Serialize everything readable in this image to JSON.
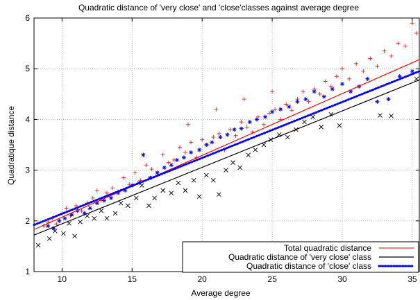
{
  "chart_data": {
    "type": "scatter",
    "title": "Quadratic distance of 'very close' and 'close'classes against average degree",
    "xlabel": "Average degree",
    "ylabel": "Quadratique distance",
    "xlim": [
      8,
      35.5
    ],
    "ylim": [
      1,
      6
    ],
    "x_ticks": [
      10,
      15,
      20,
      25,
      30,
      35
    ],
    "y_ticks": [
      1,
      2,
      3,
      4,
      5,
      6
    ],
    "grid": true,
    "legend_position": "bottom-right",
    "colors": {
      "total": "#ff0000",
      "very_close": "#000000",
      "close": "#0000ff"
    },
    "fit_lines": [
      {
        "name": "Total quadratic distance",
        "series": "total",
        "x": [
          8,
          35.5
        ],
        "y": [
          1.83,
          5.18
        ],
        "style": "solid"
      },
      {
        "name": "Quadratic distance of 'very close' class",
        "series": "very_close",
        "x": [
          8,
          35.5
        ],
        "y": [
          1.72,
          4.78
        ],
        "style": "solid"
      },
      {
        "name": "Quadratic distance of 'close' class",
        "series": "close",
        "x": [
          8,
          35.5
        ],
        "y": [
          1.92,
          4.95
        ],
        "style": "dotted"
      }
    ],
    "series": [
      {
        "name": "Total quadratic distance",
        "key": "total",
        "marker": "+",
        "points": [
          [
            8.7,
            1.9
          ],
          [
            9.0,
            1.98
          ],
          [
            9.3,
            2.05
          ],
          [
            9.6,
            1.94
          ],
          [
            10.0,
            2.15
          ],
          [
            10.3,
            2.25
          ],
          [
            10.6,
            2.1
          ],
          [
            11.0,
            2.3
          ],
          [
            11.4,
            2.2
          ],
          [
            11.8,
            2.35
          ],
          [
            12.2,
            2.45
          ],
          [
            12.5,
            2.6
          ],
          [
            12.8,
            2.4
          ],
          [
            13.2,
            2.55
          ],
          [
            13.6,
            2.65
          ],
          [
            14.0,
            2.58
          ],
          [
            14.4,
            2.85
          ],
          [
            14.8,
            2.72
          ],
          [
            15.2,
            2.95
          ],
          [
            15.6,
            2.8
          ],
          [
            16.0,
            3.1
          ],
          [
            16.4,
            3.02
          ],
          [
            16.8,
            2.9
          ],
          [
            17.2,
            3.3
          ],
          [
            17.6,
            3.15
          ],
          [
            18.0,
            3.2
          ],
          [
            18.4,
            3.45
          ],
          [
            18.8,
            3.35
          ],
          [
            19.2,
            3.55
          ],
          [
            19.6,
            3.25
          ],
          [
            20.0,
            3.6
          ],
          [
            20.4,
            3.5
          ],
          [
            20.8,
            3.65
          ],
          [
            21.2,
            3.72
          ],
          [
            21.6,
            3.4
          ],
          [
            22.0,
            3.8
          ],
          [
            22.4,
            3.68
          ],
          [
            22.8,
            3.95
          ],
          [
            23.2,
            3.85
          ],
          [
            23.6,
            3.75
          ],
          [
            24.0,
            4.05
          ],
          [
            24.4,
            3.9
          ],
          [
            24.8,
            4.12
          ],
          [
            25.2,
            4.2
          ],
          [
            25.6,
            4.0
          ],
          [
            26.0,
            4.3
          ],
          [
            26.4,
            4.18
          ],
          [
            26.8,
            4.4
          ],
          [
            27.2,
            4.55
          ],
          [
            27.6,
            4.35
          ],
          [
            28.0,
            4.6
          ],
          [
            28.4,
            4.5
          ],
          [
            28.8,
            4.75
          ],
          [
            29.2,
            4.65
          ],
          [
            29.6,
            4.85
          ],
          [
            30.0,
            5.0
          ],
          [
            30.5,
            4.8
          ],
          [
            31.0,
            5.1
          ],
          [
            31.5,
            4.95
          ],
          [
            32.0,
            5.2
          ],
          [
            32.5,
            5.05
          ],
          [
            33.0,
            5.35
          ],
          [
            33.5,
            5.25
          ],
          [
            34.0,
            5.5
          ],
          [
            34.5,
            5.45
          ],
          [
            35.0,
            5.9
          ],
          [
            35.3,
            5.7
          ],
          [
            21.0,
            4.2
          ],
          [
            23.0,
            4.4
          ],
          [
            25.0,
            4.55
          ],
          [
            19.0,
            3.9
          ]
        ]
      },
      {
        "name": "Quadratic distance of 'very close' class",
        "key": "very_close",
        "marker": "x",
        "points": [
          [
            8.3,
            1.52
          ],
          [
            9.1,
            1.65
          ],
          [
            9.5,
            1.8
          ],
          [
            10.1,
            1.75
          ],
          [
            10.5,
            1.95
          ],
          [
            10.9,
            1.7
          ],
          [
            11.3,
            1.98
          ],
          [
            11.8,
            2.1
          ],
          [
            12.3,
            2.05
          ],
          [
            12.8,
            2.2
          ],
          [
            13.2,
            2.05
          ],
          [
            13.8,
            2.15
          ],
          [
            14.2,
            2.35
          ],
          [
            14.7,
            2.3
          ],
          [
            15.3,
            2.45
          ],
          [
            15.7,
            2.7
          ],
          [
            16.2,
            2.3
          ],
          [
            16.6,
            2.45
          ],
          [
            17.2,
            2.6
          ],
          [
            17.8,
            2.55
          ],
          [
            18.3,
            2.75
          ],
          [
            18.8,
            2.6
          ],
          [
            19.4,
            2.8
          ],
          [
            19.8,
            2.48
          ],
          [
            20.3,
            2.9
          ],
          [
            20.8,
            2.8
          ],
          [
            21.2,
            2.52
          ],
          [
            21.7,
            3.0
          ],
          [
            22.2,
            3.15
          ],
          [
            22.7,
            3.05
          ],
          [
            23.3,
            3.3
          ],
          [
            23.8,
            3.4
          ],
          [
            24.4,
            3.5
          ],
          [
            24.9,
            3.6
          ],
          [
            25.5,
            3.7
          ],
          [
            26.1,
            3.65
          ],
          [
            26.7,
            3.8
          ],
          [
            27.3,
            3.95
          ],
          [
            27.9,
            4.05
          ],
          [
            28.5,
            3.85
          ],
          [
            29.2,
            4.1
          ],
          [
            29.8,
            3.88
          ],
          [
            32.7,
            4.08
          ],
          [
            33.5,
            4.07
          ],
          [
            35.3,
            4.8
          ]
        ]
      },
      {
        "name": "Quadratic distance of 'close' class",
        "key": "close",
        "marker": "*",
        "points": [
          [
            9.0,
            1.9
          ],
          [
            9.4,
            1.85
          ],
          [
            9.8,
            2.0
          ],
          [
            10.2,
            2.05
          ],
          [
            10.7,
            2.12
          ],
          [
            11.1,
            2.2
          ],
          [
            11.6,
            2.15
          ],
          [
            12.0,
            2.25
          ],
          [
            12.5,
            2.35
          ],
          [
            13.0,
            2.4
          ],
          [
            13.5,
            2.45
          ],
          [
            14.0,
            2.55
          ],
          [
            14.5,
            2.6
          ],
          [
            15.0,
            2.7
          ],
          [
            15.5,
            2.75
          ],
          [
            15.8,
            3.3
          ],
          [
            16.3,
            2.85
          ],
          [
            16.8,
            2.95
          ],
          [
            17.3,
            3.05
          ],
          [
            17.8,
            3.1
          ],
          [
            18.2,
            3.2
          ],
          [
            18.7,
            3.25
          ],
          [
            19.2,
            3.35
          ],
          [
            19.8,
            3.4
          ],
          [
            20.3,
            3.5
          ],
          [
            20.7,
            3.55
          ],
          [
            21.3,
            3.65
          ],
          [
            21.8,
            3.7
          ],
          [
            22.3,
            3.8
          ],
          [
            22.8,
            3.82
          ],
          [
            23.4,
            3.95
          ],
          [
            23.9,
            4.0
          ],
          [
            24.5,
            4.05
          ],
          [
            25.0,
            4.15
          ],
          [
            25.6,
            4.2
          ],
          [
            26.2,
            4.25
          ],
          [
            26.8,
            4.35
          ],
          [
            27.4,
            4.4
          ],
          [
            28.0,
            4.55
          ],
          [
            28.7,
            4.45
          ],
          [
            29.3,
            4.6
          ],
          [
            30.0,
            4.7
          ],
          [
            30.6,
            4.55
          ],
          [
            31.2,
            4.65
          ],
          [
            31.8,
            4.8
          ],
          [
            32.5,
            4.35
          ],
          [
            33.3,
            4.4
          ],
          [
            34.1,
            4.85
          ],
          [
            35.0,
            4.95
          ]
        ]
      }
    ]
  }
}
